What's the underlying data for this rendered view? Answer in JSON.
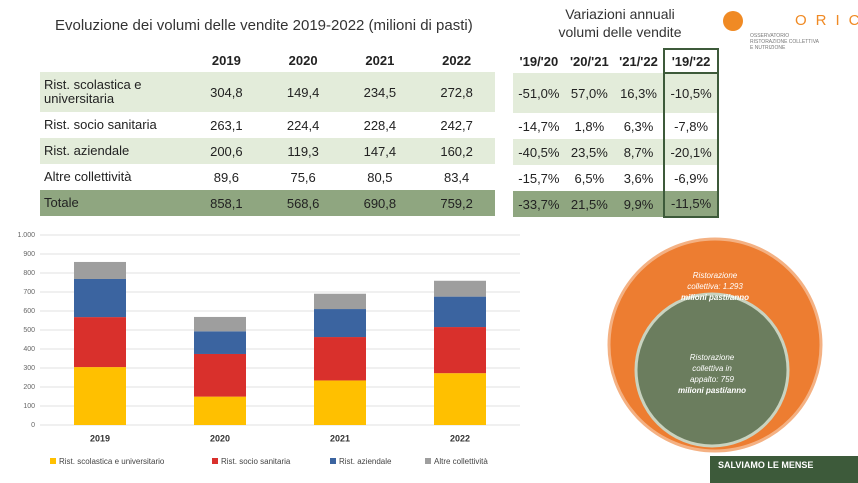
{
  "title": "Evoluzione dei volumi delle vendite 2019-2022 (milioni di pasti)",
  "table": {
    "header": [
      "2019",
      "2020",
      "2021",
      "2022"
    ],
    "rows": [
      [
        "Rist. scolastica e universitaria",
        "304,8",
        "149,4",
        "234,5",
        "272,8"
      ],
      [
        "Rist. socio sanitaria",
        "263,1",
        "224,4",
        "228,4",
        "242,7"
      ],
      [
        "Rist. aziendale",
        "200,6",
        "119,3",
        "147,4",
        "160,2"
      ],
      [
        "Altre collettività",
        "89,6",
        "75,6",
        "80,5",
        "83,4"
      ],
      [
        "Totale",
        "858,1",
        "568,6",
        "690,8",
        "759,2"
      ]
    ]
  },
  "changes_title": [
    "Variazioni annuali",
    "volumi delle vendite"
  ],
  "changes_table": {
    "header": [
      "'19/'20",
      "'20/'21",
      "'21/'22",
      "'19/'22"
    ],
    "rows": [
      [
        "-51,0%",
        "57,0%",
        "16,3%",
        "-10,5%"
      ],
      [
        "-14,7%",
        "1,8%",
        "6,3%",
        "-7,8%"
      ],
      [
        "-40,5%",
        "23,5%",
        "8,7%",
        "-20,1%"
      ],
      [
        "-15,7%",
        "6,5%",
        "3,6%",
        "-6,9%"
      ],
      [
        "-33,7%",
        "21,5%",
        "9,9%",
        "-11,5%"
      ]
    ]
  },
  "logo": {
    "name": "ORICON",
    "subtitle": [
      "OSSERVATORIO",
      "RISTORAZIONE COLLETTIVA",
      "E NUTRIZIONE"
    ]
  },
  "bubble": {
    "outer": [
      "Ristorazione",
      "collettiva: 1.293",
      "milioni pasti/anno"
    ],
    "inner": [
      "Ristorazione",
      "collettiva in",
      "appalto: 759",
      "milioni pasti/anno"
    ]
  },
  "footer": "SALVIAMO LE MENSE",
  "chart_data": {
    "type": "stacked_bar",
    "categories": [
      "2019",
      "2020",
      "2021",
      "2022"
    ],
    "series": [
      {
        "name": "Rist. scolastica e universitario",
        "color": "#ffc000",
        "values": [
          304.8,
          149.4,
          234.5,
          272.8
        ]
      },
      {
        "name": "Rist. socio sanitaria",
        "color": "#d9302c",
        "values": [
          263.1,
          224.4,
          228.4,
          242.7
        ]
      },
      {
        "name": "Rist. aziendale",
        "color": "#3b64a0",
        "values": [
          200.6,
          119.3,
          147.4,
          160.2
        ]
      },
      {
        "name": "Altre collettività",
        "color": "#9e9e9e",
        "values": [
          89.6,
          75.6,
          80.5,
          83.4
        ]
      }
    ],
    "ylim": [
      0,
      1000
    ],
    "yticks": [
      0,
      100,
      200,
      300,
      400,
      500,
      600,
      700,
      800,
      900,
      {
        "value": 1000,
        "label": "1.000"
      }
    ],
    "grid": true
  }
}
